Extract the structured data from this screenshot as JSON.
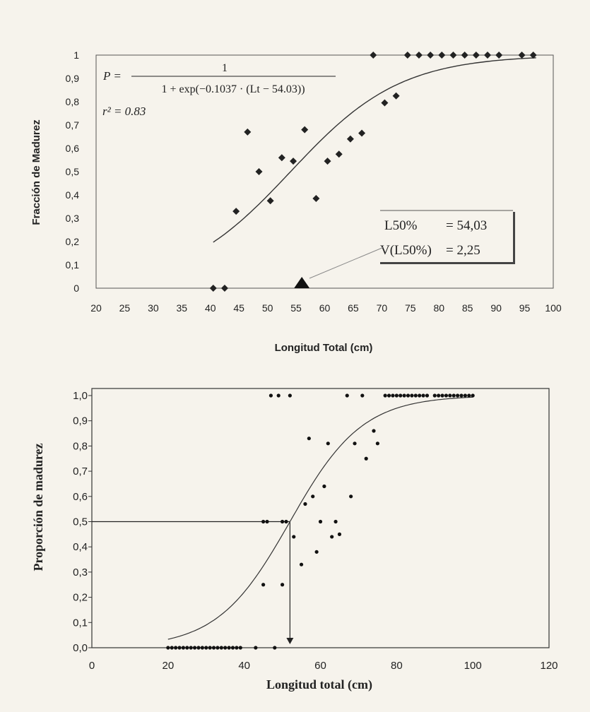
{
  "chart_data": [
    {
      "type": "scatter",
      "xlabel": "Longitud Total (cm)",
      "ylabel": "Fracción de Madurez",
      "xlim": [
        20,
        100
      ],
      "ylim": [
        0,
        1
      ],
      "x_ticks": [
        "20",
        "25",
        "30",
        "35",
        "40",
        "45",
        "50",
        "55",
        "60",
        "65",
        "70",
        "75",
        "80",
        "85",
        "90",
        "95",
        "100"
      ],
      "y_ticks": [
        "0",
        "0,1",
        "0,2",
        "0,3",
        "0,4",
        "0,5",
        "0,6",
        "0,7",
        "0,8",
        "0,9",
        "1"
      ],
      "equation": {
        "lhs": "P =",
        "numerator": "1",
        "denominator": "1 + exp(−0.1037 · (Lt − 54.03))",
        "r2": "r² = 0.83"
      },
      "logistic": {
        "a": 0.1037,
        "l50": 54.03,
        "x_range": [
          40.5,
          97
        ]
      },
      "box": {
        "line1_left": "L50%",
        "line1_right": "= 54,03",
        "line2_left": "V(L50%)",
        "line2_right": "= 2,25"
      },
      "marker_triangle_x": 56,
      "points": {
        "x": [
          40.5,
          42.5,
          44.5,
          46.5,
          48.5,
          50.5,
          52.5,
          54.5,
          56.5,
          58.5,
          60.5,
          62.5,
          64.5,
          66.5,
          68.5,
          70.5,
          72.5,
          74.5,
          76.5,
          78.5,
          80.5,
          82.5,
          84.5,
          86.5,
          88.5,
          90.5,
          94.5,
          96.5
        ],
        "y": [
          0,
          0,
          0.33,
          0.67,
          0.5,
          0.375,
          0.56,
          0.545,
          0.68,
          0.385,
          0.545,
          0.575,
          0.64,
          0.665,
          1,
          0.795,
          0.825,
          1,
          1,
          1,
          1,
          1,
          1,
          1,
          1,
          1,
          1,
          1
        ]
      }
    },
    {
      "type": "scatter",
      "xlabel": "Longitud total (cm)",
      "ylabel": "Proporción de madurez",
      "xlim": [
        0,
        120
      ],
      "ylim": [
        0,
        1
      ],
      "x_ticks": [
        "0",
        "20",
        "40",
        "60",
        "80",
        "100",
        "120"
      ],
      "y_ticks": [
        "0,0",
        "0,1",
        "0,2",
        "0,3",
        "0,4",
        "0,5",
        "0,6",
        "0,7",
        "0,8",
        "0,9",
        "1,0"
      ],
      "logistic": {
        "a": 0.105,
        "l50": 52,
        "x_range": [
          20,
          100
        ]
      },
      "l50_guide": {
        "x": 52,
        "y": 0.5
      },
      "points": {
        "x": [
          20,
          21,
          22,
          23,
          24,
          25,
          26,
          27,
          28,
          29,
          30,
          31,
          32,
          33,
          34,
          35,
          36,
          37,
          38,
          39,
          43,
          48,
          45,
          46,
          50,
          51,
          45,
          50,
          47,
          49,
          52,
          53,
          55,
          56,
          57,
          58,
          59,
          60,
          61,
          62,
          63,
          64,
          65,
          67,
          68,
          69,
          71,
          72,
          74,
          75,
          77,
          78,
          79,
          80,
          81,
          82,
          83,
          84,
          85,
          86,
          87,
          88,
          90,
          91,
          92,
          93,
          94,
          95,
          96,
          97,
          98,
          99,
          100
        ],
        "y": [
          0,
          0,
          0,
          0,
          0,
          0,
          0,
          0,
          0,
          0,
          0,
          0,
          0,
          0,
          0,
          0,
          0,
          0,
          0,
          0,
          0,
          0,
          0.5,
          0.5,
          0.5,
          0.5,
          0.25,
          0.25,
          1,
          1,
          1,
          0.44,
          0.33,
          0.57,
          0.83,
          0.6,
          0.38,
          0.5,
          0.64,
          0.81,
          0.44,
          0.5,
          0.45,
          1,
          0.6,
          0.81,
          1,
          0.75,
          0.86,
          0.81,
          1,
          1,
          1,
          1,
          1,
          1,
          1,
          1,
          1,
          1,
          1,
          1,
          1,
          1,
          1,
          1,
          1,
          1,
          1,
          1,
          1,
          1,
          1
        ]
      }
    }
  ]
}
